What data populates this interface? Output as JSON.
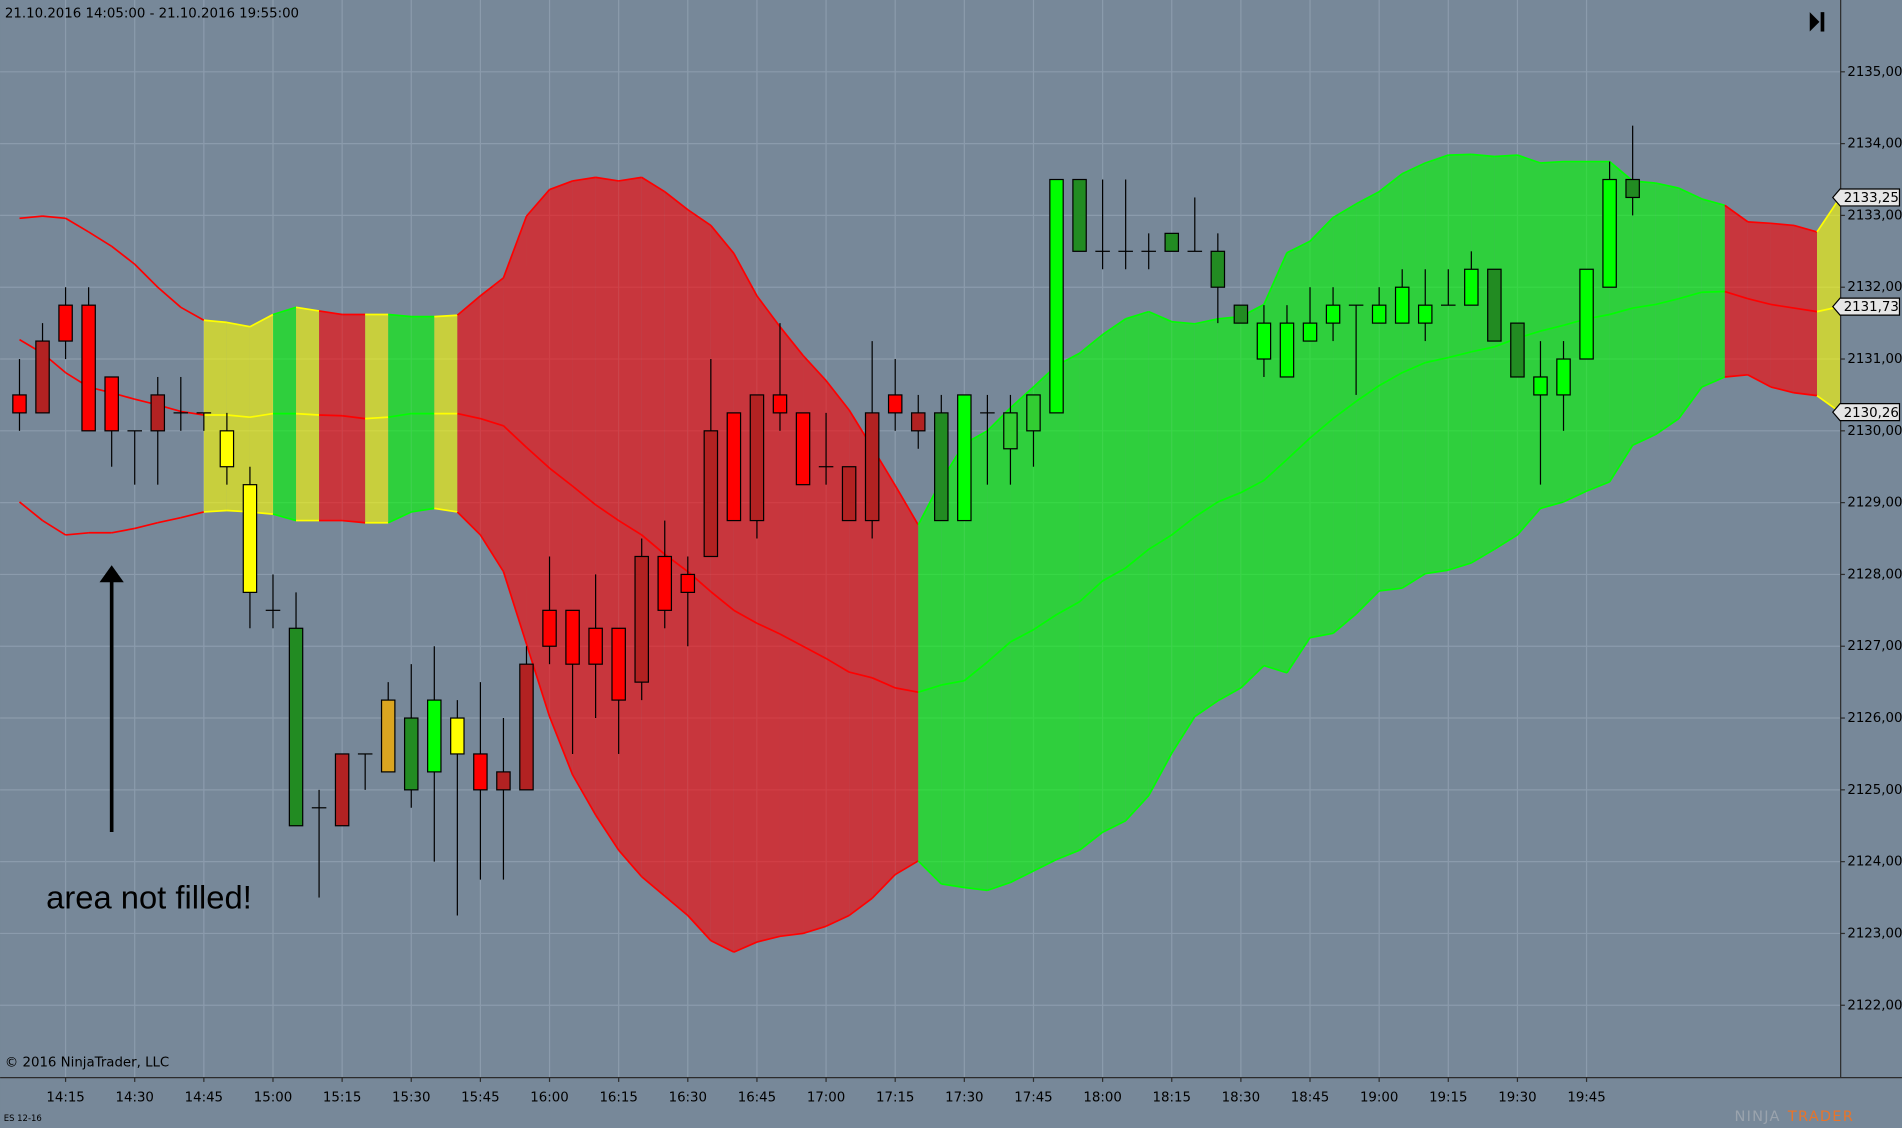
{
  "chart_data": {
    "type": "candlestick",
    "title": "21.10.2016 14:05:00 - 21.10.2016 19:55:00",
    "annotation": "area not filled!",
    "copyright": "© 2016 NinjaTrader, LLC",
    "instrument": "ES 12-16",
    "logo": [
      "NINJA",
      "TRADER"
    ],
    "background": "#778899",
    "grid_color": "#8b9bac",
    "grid": true,
    "ylim": [
      2121,
      2136
    ],
    "yticks": [
      {
        "value": 2122,
        "label": "2122,00"
      },
      {
        "value": 2123,
        "label": "2123,00"
      },
      {
        "value": 2124,
        "label": "2124,00"
      },
      {
        "value": 2125,
        "label": "2125,00"
      },
      {
        "value": 2126,
        "label": "2126,00"
      },
      {
        "value": 2127,
        "label": "2127,00"
      },
      {
        "value": 2128,
        "label": "2128,00"
      },
      {
        "value": 2129,
        "label": "2129,00"
      },
      {
        "value": 2130,
        "label": "2130,00"
      },
      {
        "value": 2131,
        "label": "2131,00"
      },
      {
        "value": 2132,
        "label": "2132,00"
      },
      {
        "value": 2133,
        "label": "2133,00"
      },
      {
        "value": 2134,
        "label": "2134,00"
      },
      {
        "value": 2135,
        "label": "2135,00"
      }
    ],
    "categories": [
      null,
      null,
      "14:15",
      null,
      null,
      "14:30",
      null,
      null,
      "14:45",
      null,
      null,
      "15:00",
      null,
      null,
      "15:15",
      null,
      null,
      "15:30",
      null,
      null,
      "15:45",
      null,
      null,
      "16:00",
      null,
      null,
      "16:15",
      null,
      null,
      "16:30",
      null,
      null,
      "16:45",
      null,
      null,
      "17:00",
      null,
      null,
      "17:15",
      null,
      null,
      "17:30",
      null,
      null,
      "17:45",
      null,
      null,
      "18:00",
      null,
      null,
      "18:15",
      null,
      null,
      "18:30",
      null,
      null,
      "18:45",
      null,
      null,
      "19:00",
      null,
      null,
      "19:15",
      null,
      null,
      "19:30",
      null,
      null,
      "19:45",
      null,
      null,
      null,
      null,
      null,
      null,
      null,
      null,
      null,
      null,
      null
    ],
    "candles": {
      "open": [
        2130.5,
        2131.25,
        2131.75,
        2131.75,
        2130.75,
        2130,
        2130.5,
        2130.25,
        2130.25,
        2130,
        2129.25,
        2127.5,
        2127.25,
        2124.75,
        2125.5,
        2125.5,
        2125.25,
        2125,
        2125.25,
        2126,
        2125.5,
        2125.25,
        2125,
        2127.5,
        2127.5,
        2127.25,
        2127.25,
        2126.5,
        2128.25,
        2128,
        2128.25,
        2130.25,
        2128.75,
        2130.5,
        2130.25,
        2129.5,
        2129.5,
        2128.75,
        2130.5,
        2130.25,
        2130.25,
        2128.75,
        2130.25,
        2129.75,
        2130,
        2130.25,
        2133.5,
        2132.5,
        2132.5,
        2132.5,
        2132.5,
        2132.5,
        2132.5,
        2131.75,
        2131,
        2130.75,
        2131.25,
        2131.5,
        2131.75,
        2131.5,
        2131.5,
        2131.5,
        2131.75,
        2131.75,
        2132.25,
        2131.5,
        2130.5,
        2130.5,
        2131,
        2132,
        2133.5,
        null,
        null,
        null,
        null,
        null,
        null,
        null,
        null,
        null
      ],
      "high": [
        2131,
        2131.5,
        2132,
        2132,
        2130.75,
        2130,
        2130.75,
        2130.75,
        2130.25,
        2130.25,
        2129.5,
        2128,
        2127.75,
        2125,
        2125.5,
        2125.5,
        2126.5,
        2126.75,
        2127,
        2126.25,
        2126.5,
        2126,
        2127,
        2128.25,
        2127.5,
        2128,
        2127.25,
        2128.5,
        2128.75,
        2128.25,
        2131,
        2130.25,
        2130.5,
        2131.5,
        2130.25,
        2130.25,
        2129.5,
        2131.25,
        2131,
        2130.5,
        2130.5,
        2130.5,
        2130.5,
        2130.5,
        2130.5,
        2133.5,
        2133.5,
        2133.5,
        2133.5,
        2132.75,
        2132.75,
        2133.25,
        2132.75,
        2131.75,
        2131.75,
        2131.75,
        2132,
        2132,
        2131.75,
        2132,
        2132.25,
        2132.25,
        2132.25,
        2132.5,
        2132.25,
        2131.5,
        2131.25,
        2131.25,
        2132.25,
        2133.75,
        2134.25,
        null,
        null,
        null,
        null,
        null,
        null,
        null,
        null,
        null
      ],
      "low": [
        2130,
        2130.25,
        2131,
        2130,
        2129.5,
        2129.25,
        2129.25,
        2130,
        2130,
        2129.25,
        2127.25,
        2127.25,
        2124.5,
        2123.5,
        2124.5,
        2125,
        2125.25,
        2124.75,
        2124,
        2123.25,
        2123.75,
        2123.75,
        2125,
        2126.75,
        2125.5,
        2126,
        2125.5,
        2126.25,
        2127.25,
        2127,
        2128.25,
        2128.75,
        2128.5,
        2130,
        2129.25,
        2129.25,
        2128.75,
        2128.5,
        2130,
        2129.75,
        2128.75,
        2128.75,
        2129.25,
        2129.25,
        2129.5,
        2130.25,
        2132.5,
        2132.25,
        2132.25,
        2132.25,
        2132.5,
        2132.5,
        2131.5,
        2131.5,
        2130.75,
        2130.75,
        2131.25,
        2131.25,
        2130.5,
        2131.5,
        2131.5,
        2131.25,
        2131.75,
        2131.75,
        2131.25,
        2130.75,
        2129.25,
        2130,
        2131,
        2132,
        2133,
        null,
        null,
        null,
        null,
        null,
        null,
        null,
        null,
        null
      ],
      "close": [
        2130.25,
        2130.25,
        2131.25,
        2130,
        2130,
        2130,
        2130,
        2130.25,
        2130.25,
        2129.5,
        2127.75,
        2127.5,
        2124.5,
        2124.75,
        2124.5,
        2125.5,
        2126.25,
        2126,
        2126.25,
        2125.5,
        2125,
        2125,
        2126.75,
        2127,
        2126.75,
        2126.75,
        2126.25,
        2128.25,
        2127.5,
        2127.75,
        2130,
        2128.75,
        2130.5,
        2130.25,
        2129.25,
        2129.5,
        2128.75,
        2130.25,
        2130.25,
        2130,
        2128.75,
        2130.5,
        2130.25,
        2130.25,
        2130.5,
        2133.5,
        2132.5,
        2132.5,
        2132.5,
        2132.5,
        2132.75,
        2132.5,
        2132,
        2131.5,
        2131.5,
        2131.5,
        2131.5,
        2131.75,
        2131.75,
        2131.75,
        2132,
        2131.75,
        2131.75,
        2132.25,
        2131.25,
        2130.75,
        2130.75,
        2131,
        2132.25,
        2133.5,
        2133.25,
        null,
        null,
        null,
        null,
        null,
        null,
        null,
        null,
        null
      ],
      "colors": [
        "#ff0000",
        "#b22222",
        "#ff0000",
        "#ff0000",
        "#ff0000",
        "#ff0000",
        "#b22222",
        "#ff0000",
        "#ffff00",
        "#ffff00",
        "#ffff00",
        "#ffff00",
        "#228b22",
        "#b22222",
        "#b22222",
        "#b22222",
        "#daa520",
        "#228b22",
        "#00ff00",
        "#ffff00",
        "#ff0000",
        "#b22222",
        "#b22222",
        "#ff0000",
        "#ff0000",
        "#ff0000",
        "#ff0000",
        "#b22222",
        "#ff0000",
        "#ff0000",
        "#b22222",
        "#ff0000",
        "#b22222",
        "#ff0000",
        "#ff0000",
        "#ff0000",
        "#b22222",
        "#b22222",
        "#ff0000",
        "#b22222",
        "#228b22",
        "#00ff00",
        "#228b22",
        "#32cd32",
        "#32cd32",
        "#00ff00",
        "#228b22",
        "#228b22",
        "#228b22",
        "#228b22",
        "#228b22",
        "#228b22",
        "#228b22",
        "#228b22",
        "#00ff00",
        "#00ff00",
        "#00ff00",
        "#00ff00",
        "#00ff00",
        "#00ff00",
        "#00ff00",
        "#00ff00",
        "#00ff00",
        "#00ff00",
        "#228b22",
        "#228b22",
        "#00ff00",
        "#00ff00",
        "#00ff00",
        "#00ff00",
        "#228b22",
        null,
        null,
        null,
        null,
        null,
        null,
        null,
        null,
        null
      ]
    },
    "band": {
      "upper": [
        2132.96,
        2132.99,
        2132.96,
        2132.77,
        2132.57,
        2132.32,
        2132,
        2131.72,
        2131.54,
        2131.51,
        2131.45,
        2131.62,
        2131.72,
        2131.67,
        2131.62,
        2131.62,
        2131.62,
        2131.59,
        2131.59,
        2131.61,
        2131.88,
        2132.13,
        2132.99,
        2133.36,
        2133.48,
        2133.53,
        2133.48,
        2133.53,
        2133.33,
        2133.08,
        2132.86,
        2132.47,
        2131.88,
        2131.45,
        2131.05,
        2130.7,
        2130.29,
        2129.77,
        2129.24,
        2128.69,
        2129.31,
        2129.82,
        2130,
        2130.32,
        2130.61,
        2130.91,
        2131.08,
        2131.34,
        2131.56,
        2131.66,
        2131.52,
        2131.49,
        2131.56,
        2131.59,
        2131.76,
        2132.48,
        2132.64,
        2132.97,
        2133.16,
        2133.33,
        2133.58,
        2133.73,
        2133.84,
        2133.85,
        2133.82,
        2133.84,
        2133.73,
        2133.75,
        2133.75,
        2133.75,
        2133.48,
        2133.45,
        2133.38,
        2133.23,
        2133.14,
        2132.91,
        2132.89,
        2132.86,
        2132.77,
        2133.25
      ],
      "middle": [
        2131.27,
        2131.08,
        2130.81,
        2130.61,
        2130.53,
        2130.44,
        2130.36,
        2130.27,
        2130.22,
        2130.22,
        2130.19,
        2130.24,
        2130.24,
        2130.22,
        2130.21,
        2130.17,
        2130.19,
        2130.24,
        2130.24,
        2130.24,
        2130.17,
        2130.07,
        2129.77,
        2129.48,
        2129.23,
        2128.97,
        2128.75,
        2128.55,
        2128.28,
        2128.04,
        2127.76,
        2127.5,
        2127.32,
        2127.17,
        2127,
        2126.83,
        2126.64,
        2126.56,
        2126.42,
        2126.36,
        2126.46,
        2126.52,
        2126.78,
        2127.06,
        2127.23,
        2127.44,
        2127.62,
        2127.91,
        2128.09,
        2128.35,
        2128.55,
        2128.8,
        2129.01,
        2129.14,
        2129.31,
        2129.6,
        2129.9,
        2130.17,
        2130.41,
        2130.63,
        2130.81,
        2130.95,
        2131.02,
        2131.1,
        2131.17,
        2131.29,
        2131.39,
        2131.47,
        2131.56,
        2131.62,
        2131.71,
        2131.76,
        2131.84,
        2131.93,
        2131.94,
        2131.84,
        2131.76,
        2131.71,
        2131.66,
        2131.73
      ],
      "lower": [
        2129.01,
        2128.75,
        2128.55,
        2128.58,
        2128.58,
        2128.64,
        2128.72,
        2128.79,
        2128.87,
        2128.89,
        2128.87,
        2128.84,
        2128.75,
        2128.75,
        2128.75,
        2128.72,
        2128.72,
        2128.87,
        2128.92,
        2128.87,
        2128.55,
        2128.04,
        2127.03,
        2126.02,
        2125.21,
        2124.65,
        2124.16,
        2123.79,
        2123.52,
        2123.25,
        2122.9,
        2122.74,
        2122.88,
        2122.96,
        2123,
        2123.1,
        2123.25,
        2123.49,
        2123.82,
        2124.01,
        2123.69,
        2123.64,
        2123.6,
        2123.71,
        2123.87,
        2124.03,
        2124.16,
        2124.41,
        2124.57,
        2124.92,
        2125.51,
        2126.02,
        2126.24,
        2126.42,
        2126.73,
        2126.63,
        2127.12,
        2127.18,
        2127.45,
        2127.77,
        2127.81,
        2128.01,
        2128.06,
        2128.16,
        2128.35,
        2128.55,
        2128.92,
        2129.01,
        2129.16,
        2129.29,
        2129.8,
        2129.95,
        2130.17,
        2130.61,
        2130.75,
        2130.78,
        2130.61,
        2130.53,
        2130.49,
        2130.26
      ],
      "segment_colors": [
        "#ff0000",
        "#ff0000",
        "#ff0000",
        "#ff0000",
        "#ff0000",
        "#ff0000",
        "#ff0000",
        "#ff0000",
        "#ffff00",
        "#ffff00",
        "#ffff00",
        "#00ff00",
        "#ffff00",
        "#ff0000",
        "#ff0000",
        "#ffff00",
        "#00ff00",
        "#00ff00",
        "#ffff00",
        "#ff0000",
        "#ff0000",
        "#ff0000",
        "#ff0000",
        "#ff0000",
        "#ff0000",
        "#ff0000",
        "#ff0000",
        "#ff0000",
        "#ff0000",
        "#ff0000",
        "#ff0000",
        "#ff0000",
        "#ff0000",
        "#ff0000",
        "#ff0000",
        "#ff0000",
        "#ff0000",
        "#ff0000",
        "#ff0000",
        "#00ff00",
        "#00ff00",
        "#00ff00",
        "#00ff00",
        "#00ff00",
        "#00ff00",
        "#00ff00",
        "#00ff00",
        "#00ff00",
        "#00ff00",
        "#00ff00",
        "#00ff00",
        "#00ff00",
        "#00ff00",
        "#00ff00",
        "#00ff00",
        "#00ff00",
        "#00ff00",
        "#00ff00",
        "#00ff00",
        "#00ff00",
        "#00ff00",
        "#00ff00",
        "#00ff00",
        "#00ff00",
        "#00ff00",
        "#00ff00",
        "#00ff00",
        "#00ff00",
        "#00ff00",
        "#00ff00",
        "#00ff00",
        "#00ff00",
        "#00ff00",
        "#00ff00",
        "#ff0000",
        "#ff0000",
        "#ff0000",
        "#ff0000",
        "#ffff00"
      ],
      "segment_filled": [
        false,
        false,
        false,
        false,
        false,
        false,
        false,
        false,
        true,
        true,
        true,
        true,
        true,
        true,
        true,
        true,
        true,
        true,
        true,
        true,
        true,
        true,
        true,
        true,
        true,
        true,
        true,
        true,
        true,
        true,
        true,
        true,
        true,
        true,
        true,
        true,
        true,
        true,
        true,
        true,
        true,
        true,
        true,
        true,
        true,
        true,
        true,
        true,
        true,
        true,
        true,
        true,
        true,
        true,
        true,
        true,
        true,
        true,
        true,
        true,
        true,
        true,
        true,
        true,
        true,
        true,
        true,
        true,
        true,
        true,
        true,
        true,
        true,
        true,
        true,
        true,
        true,
        true,
        true
      ],
      "fill_opacity": 0.6
    },
    "price_markers": [
      {
        "value": 2133.25,
        "label": "2133,25"
      },
      {
        "value": 2131.73,
        "label": "2131,73"
      },
      {
        "value": 2130.26,
        "label": "2130,26"
      }
    ]
  }
}
